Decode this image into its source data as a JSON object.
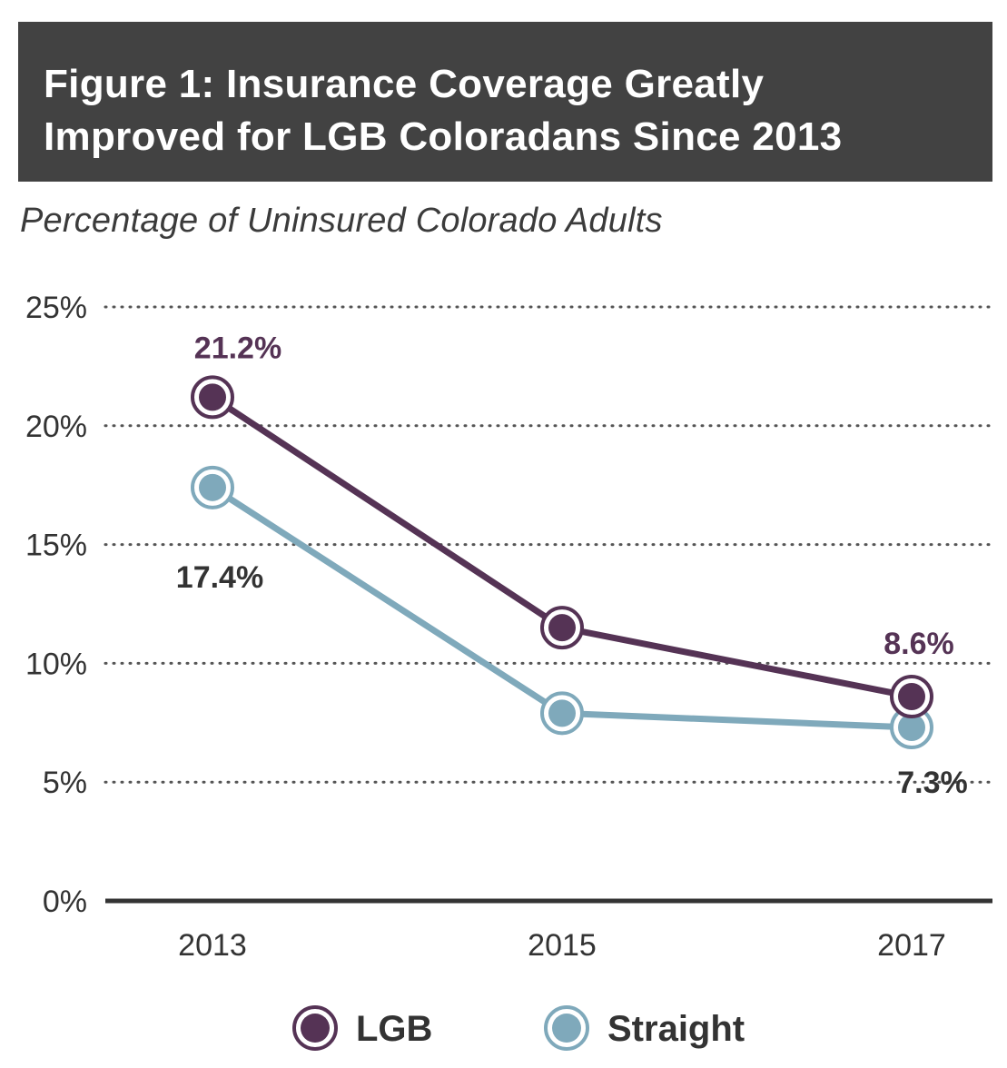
{
  "header": {
    "title_line1": "Figure 1: Insurance Coverage Greatly",
    "title_line2": "Improved for LGB Coloradans Since 2013"
  },
  "chart_data": {
    "type": "line",
    "title": "Figure 1: Insurance Coverage Greatly Improved for LGB Coloradans Since 2013",
    "subtitle": "Percentage of Uninsured Colorado Adults",
    "x": [
      "2013",
      "2015",
      "2017"
    ],
    "ylim": [
      0,
      25
    ],
    "yticks": [
      0,
      5,
      10,
      15,
      20,
      25
    ],
    "ytick_labels": [
      "0%",
      "5%",
      "10%",
      "15%",
      "20%",
      "25%"
    ],
    "grid": "dotted horizontal",
    "legend_position": "bottom",
    "series": [
      {
        "name": "LGB",
        "color": "#553355",
        "values": [
          21.2,
          11.5,
          8.6
        ],
        "labels": [
          "21.2%",
          "",
          "8.6%"
        ]
      },
      {
        "name": "Straight",
        "color": "#7fa9bb",
        "values": [
          17.4,
          7.9,
          7.3
        ],
        "labels": [
          "17.4%",
          "",
          "7.3%"
        ]
      }
    ]
  }
}
